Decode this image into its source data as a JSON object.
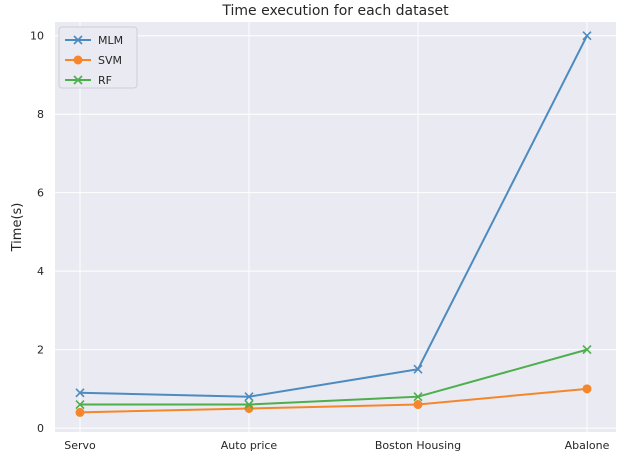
{
  "chart_data": {
    "type": "line",
    "title": "Time execution for each dataset",
    "xlabel": "",
    "ylabel": "Time(s)",
    "categories": [
      "Servo",
      "Auto price",
      "Boston Housing",
      "Abalone"
    ],
    "ylim": [
      -0.1,
      10.35
    ],
    "yticks": [
      0,
      2,
      4,
      6,
      8,
      10
    ],
    "grid": true,
    "legend": "top-left",
    "series": [
      {
        "name": "MLM",
        "values": [
          0.9,
          0.8,
          1.5,
          10.0
        ],
        "color": "#4c8bc0",
        "marker": "x"
      },
      {
        "name": "SVM",
        "values": [
          0.4,
          0.5,
          0.6,
          1.0
        ],
        "color": "#f5862b",
        "marker": "o"
      },
      {
        "name": "RF",
        "values": [
          0.6,
          0.6,
          0.8,
          2.0
        ],
        "color": "#4caf4c",
        "marker": "x"
      }
    ]
  },
  "colors": {
    "plot_background": "#eaeaf2",
    "grid": "#ffffff"
  }
}
